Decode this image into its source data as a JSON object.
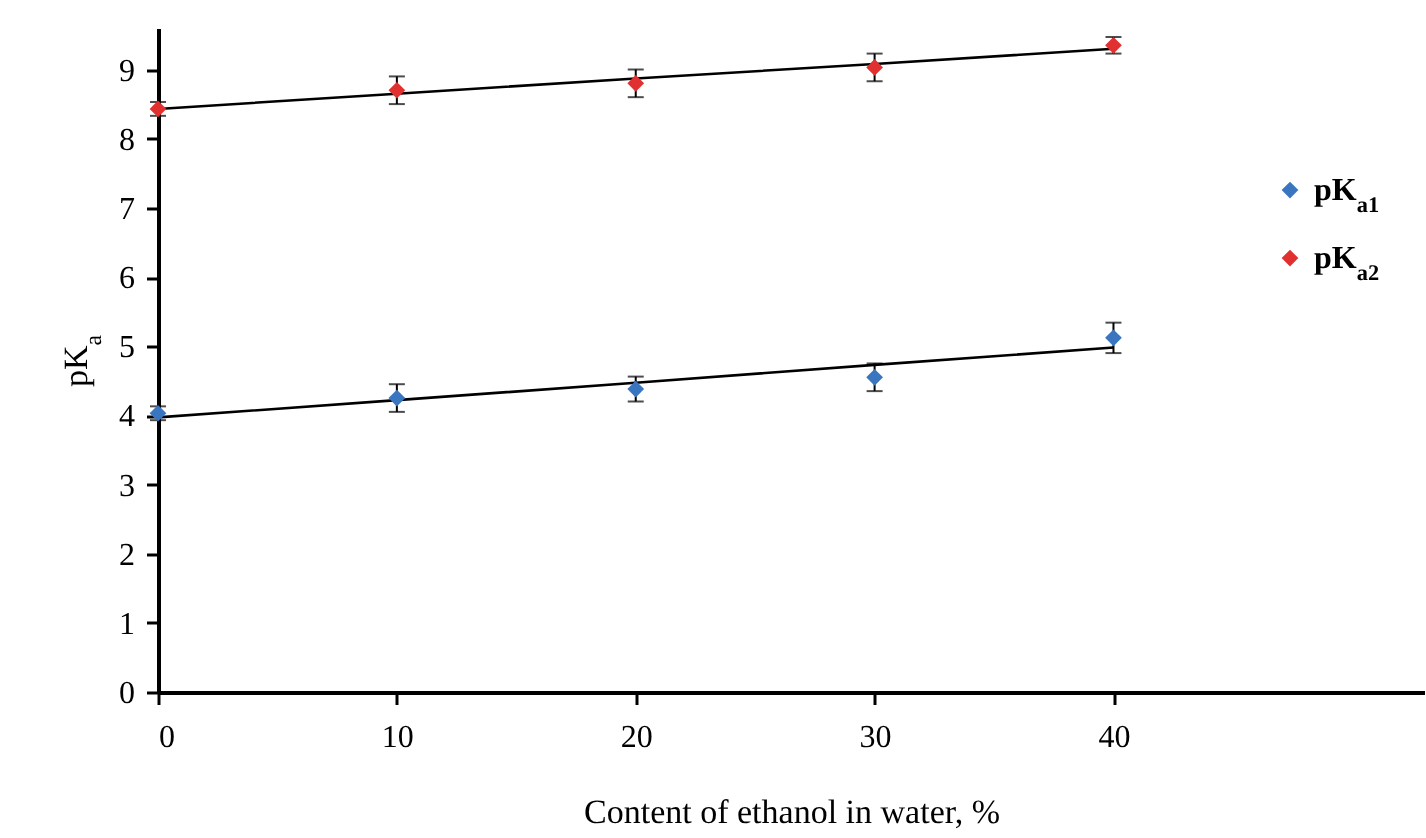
{
  "chart_data": {
    "type": "scatter",
    "xlabel": "Content of ethanol in water, %",
    "ylabel": "pK$_{a}$",
    "x": [
      0,
      10,
      20,
      30,
      40
    ],
    "series": [
      {
        "name": "pK$_{a1}$",
        "color": "#3a76c0",
        "marker": "diamond",
        "values": [
          4.03,
          4.25,
          4.38,
          4.55,
          5.12
        ],
        "errors": [
          0.1,
          0.2,
          0.18,
          0.2,
          0.22
        ]
      },
      {
        "name": "pK$_{a2}$",
        "color": "#e03030",
        "marker": "diamond",
        "values": [
          8.43,
          8.7,
          8.8,
          9.03,
          9.35
        ],
        "errors": [
          0.1,
          0.2,
          0.2,
          0.2,
          0.12
        ]
      },
      {
        "type": "line",
        "color": "#000000",
        "values": [
          3.97,
          4.22,
          4.47,
          4.73,
          4.98
        ]
      },
      {
        "type": "line",
        "color": "#000000",
        "values": [
          8.43,
          8.65,
          8.87,
          9.08,
          9.3
        ]
      }
    ],
    "xlim": [
      0,
      53
    ],
    "xticks": [
      0,
      10,
      20,
      30,
      40
    ],
    "ylim": [
      0,
      9.6
    ],
    "yticks": [
      0,
      1,
      2,
      3,
      4,
      5,
      6,
      7,
      8,
      9
    ],
    "grid": false,
    "legend": "right",
    "line_style": "solid"
  }
}
